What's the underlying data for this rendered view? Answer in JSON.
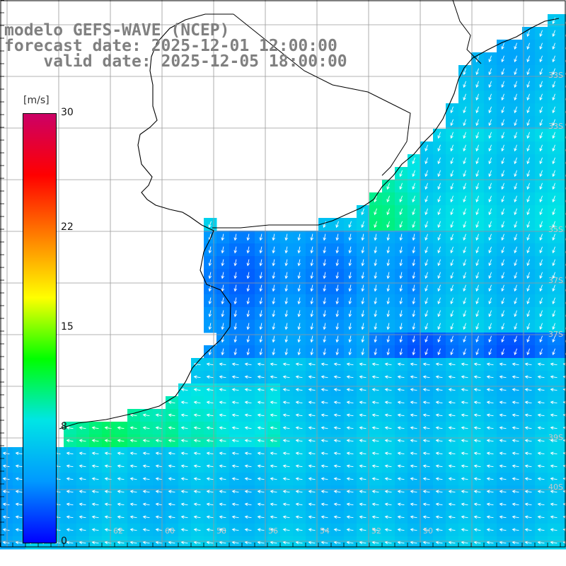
{
  "title": {
    "line1": "modelo GEFS-WAVE (NCEP)",
    "line2": "forecast date: 2025-12-01 12:00:00",
    "line3": "valid date: 2025-12-05 18:00:00"
  },
  "colorbar": {
    "unit": "[m/s]",
    "ticks": [
      "30",
      "22",
      "15",
      "8",
      "0"
    ],
    "tick_values": [
      30,
      22,
      15,
      8,
      0
    ],
    "min": 0,
    "max": 30,
    "colors": [
      "#0000ff",
      "#0099ff",
      "#00e5e5",
      "#00ff00",
      "#ffff00",
      "#ff7f00",
      "#ff0000",
      "#cc0066"
    ]
  },
  "map": {
    "variable": "wind speed and direction",
    "land_color": "#ffffff",
    "grid_color": "#9a9a9a",
    "coastline_color": "#000000",
    "lat_labels": [
      "33S",
      "33S",
      "35S",
      "37S",
      "37S",
      "39S",
      "40S"
    ],
    "lon_labels": [
      "62",
      "60",
      "58",
      "56",
      "54",
      "52",
      "50"
    ]
  }
}
